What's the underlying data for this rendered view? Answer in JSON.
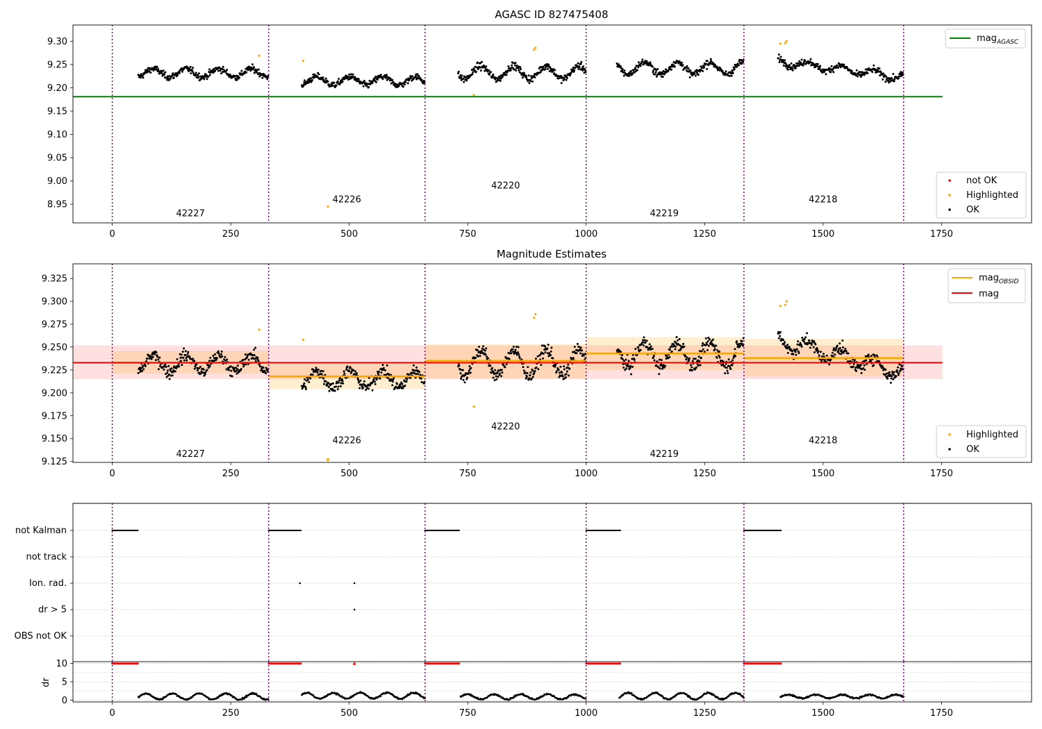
{
  "figure": {
    "x_ticks": [
      0,
      250,
      500,
      750,
      1000,
      1250,
      1500,
      1750
    ],
    "x_range": [
      -83,
      1940
    ]
  },
  "chart_data": [
    {
      "type": "scatter",
      "title": "AGASC ID 827475408",
      "xlabel": "",
      "ylabel": "",
      "xlim": [
        -83,
        1940
      ],
      "ylim": [
        8.91,
        9.335
      ],
      "y_ticks": [
        8.95,
        9.0,
        9.05,
        9.1,
        9.15,
        9.2,
        9.25,
        9.3
      ],
      "obsid_boundaries": [
        0,
        330,
        660,
        1000,
        1333,
        1670
      ],
      "obsid_labels": [
        {
          "obsid": "42227",
          "x": 165,
          "y": 8.93
        },
        {
          "obsid": "42226",
          "x": 495,
          "y": 8.96
        },
        {
          "obsid": "42220",
          "x": 830,
          "y": 8.99
        },
        {
          "obsid": "42219",
          "x": 1165,
          "y": 8.93
        },
        {
          "obsid": "42218",
          "x": 1500,
          "y": 8.96
        }
      ],
      "lines": [
        {
          "name": "mag_AGASC",
          "y": 9.181,
          "x_range": [
            -83,
            1752
          ],
          "color": "#008000"
        }
      ],
      "segments": [
        {
          "x": [
            55,
            330
          ],
          "mean": 9.232,
          "amp": 0.009,
          "noise": 0.009,
          "trend": 0.0
        },
        {
          "x": [
            400,
            660
          ],
          "mean": 9.215,
          "amp": 0.009,
          "noise": 0.009,
          "trend": 0.0
        },
        {
          "x": [
            730,
            1000
          ],
          "mean": 9.233,
          "amp": 0.014,
          "noise": 0.01,
          "trend": 0.0
        },
        {
          "x": [
            1065,
            1333
          ],
          "mean": 9.242,
          "amp": 0.013,
          "noise": 0.01,
          "trend": 0.0
        },
        {
          "x": [
            1405,
            1670
          ],
          "mean": 9.24,
          "amp": 0.008,
          "noise": 0.009,
          "trend": -0.035
        }
      ],
      "highlighted_points": [
        [
          310,
          9.269
        ],
        [
          403,
          9.258
        ],
        [
          455,
          8.945
        ],
        [
          763,
          9.185
        ],
        [
          890,
          9.282
        ],
        [
          893,
          9.286
        ],
        [
          1410,
          9.295
        ],
        [
          1420,
          9.296
        ],
        [
          1423,
          9.3
        ]
      ],
      "legends": [
        {
          "position": "upper-right",
          "entries": [
            {
              "label": "mag",
              "subscript": "AGASC",
              "kind": "line",
              "color": "#008000"
            }
          ]
        },
        {
          "position": "lower-right",
          "entries": [
            {
              "label": "not OK",
              "kind": "dot",
              "color": "#ff0000"
            },
            {
              "label": "Highlighted",
              "kind": "dot",
              "color": "#ffa500"
            },
            {
              "label": "OK",
              "kind": "dot",
              "color": "#000000"
            }
          ]
        }
      ]
    },
    {
      "type": "scatter",
      "title": "Magnitude Estimates",
      "xlabel": "",
      "ylabel": "",
      "xlim": [
        -83,
        1940
      ],
      "ylim": [
        9.124,
        9.341
      ],
      "y_ticks": [
        9.125,
        9.15,
        9.175,
        9.2,
        9.225,
        9.25,
        9.275,
        9.3,
        9.325
      ],
      "obsid_boundaries": [
        0,
        330,
        660,
        1000,
        1333,
        1670
      ],
      "obsid_labels": [
        {
          "obsid": "42227",
          "x": 165,
          "y": 9.133
        },
        {
          "obsid": "42226",
          "x": 495,
          "y": 9.148
        },
        {
          "obsid": "42220",
          "x": 830,
          "y": 9.163
        },
        {
          "obsid": "42219",
          "x": 1165,
          "y": 9.133
        },
        {
          "obsid": "42218",
          "x": 1500,
          "y": 9.148
        }
      ],
      "mag": {
        "value": 9.233,
        "band": [
          9.215,
          9.252
        ],
        "x_range": [
          -83,
          1752
        ],
        "color": "#ff0000"
      },
      "mag_obsid": [
        {
          "x": [
            0,
            330
          ],
          "value": 9.233,
          "band": [
            9.221,
            9.246
          ]
        },
        {
          "x": [
            330,
            660
          ],
          "value": 9.218,
          "band": [
            9.204,
            9.232
          ]
        },
        {
          "x": [
            660,
            1000
          ],
          "value": 9.235,
          "band": [
            9.216,
            9.253
          ]
        },
        {
          "x": [
            1000,
            1333
          ],
          "value": 9.243,
          "band": [
            9.225,
            9.261
          ]
        },
        {
          "x": [
            1333,
            1670
          ],
          "value": 9.238,
          "band": [
            9.218,
            9.259
          ]
        }
      ],
      "segments": [
        {
          "x": [
            55,
            330
          ],
          "mean": 9.232,
          "amp": 0.009,
          "noise": 0.009,
          "trend": 0.0
        },
        {
          "x": [
            400,
            660
          ],
          "mean": 9.215,
          "amp": 0.009,
          "noise": 0.009,
          "trend": 0.0
        },
        {
          "x": [
            730,
            1000
          ],
          "mean": 9.233,
          "amp": 0.014,
          "noise": 0.01,
          "trend": 0.0
        },
        {
          "x": [
            1065,
            1333
          ],
          "mean": 9.242,
          "amp": 0.013,
          "noise": 0.01,
          "trend": 0.0
        },
        {
          "x": [
            1405,
            1670
          ],
          "mean": 9.24,
          "amp": 0.008,
          "noise": 0.009,
          "trend": -0.035
        }
      ],
      "highlighted_points": [
        [
          310,
          9.269
        ],
        [
          403,
          9.258
        ],
        [
          763,
          9.185
        ],
        [
          890,
          9.282
        ],
        [
          893,
          9.286
        ],
        [
          1410,
          9.295
        ],
        [
          1420,
          9.296
        ],
        [
          1423,
          9.3
        ]
      ],
      "offscale_markers": [
        [
          455,
          9.126
        ]
      ],
      "legends": [
        {
          "position": "upper-right",
          "entries": [
            {
              "label": "mag",
              "subscript": "OBSID",
              "kind": "line",
              "color": "#ffa500"
            },
            {
              "label": "mag",
              "subscript": "",
              "kind": "line",
              "color": "#ff0000"
            }
          ]
        },
        {
          "position": "lower-right",
          "entries": [
            {
              "label": "Highlighted",
              "kind": "dot",
              "color": "#ffa500"
            },
            {
              "label": "OK",
              "kind": "dot",
              "color": "#000000"
            }
          ]
        }
      ]
    },
    {
      "type": "scatter",
      "title": "",
      "ylabel": "",
      "xlim": [
        -83,
        1940
      ],
      "flag_rows": [
        "not Kalman",
        "not track",
        "Ion. rad.",
        "dr > 5",
        "OBS not OK"
      ],
      "not_kalman_ranges": [
        [
          0,
          55
        ],
        [
          330,
          398
        ],
        [
          660,
          733
        ],
        [
          1000,
          1072
        ],
        [
          1333,
          1411
        ]
      ],
      "ion_rad_points": [
        396,
        511
      ],
      "dr_gt_5_points": [
        511
      ],
      "obsid_boundaries": [
        0,
        330,
        660,
        1000,
        1333,
        1670
      ]
    },
    {
      "type": "scatter",
      "title": "",
      "ylabel": "dr",
      "xlim": [
        -83,
        1940
      ],
      "ylim": [
        -0.5,
        10.5
      ],
      "y_ticks": [
        0,
        5,
        10
      ],
      "saturated_value": 10,
      "saturated_ranges": [
        [
          0,
          55
        ],
        [
          330,
          398
        ],
        [
          660,
          733
        ],
        [
          1000,
          1072
        ],
        [
          1333,
          1411
        ]
      ],
      "saturated_points": [
        511
      ],
      "dr_segments": [
        {
          "x": [
            55,
            330
          ],
          "mean": 1.0,
          "amp": 0.8
        },
        {
          "x": [
            400,
            660
          ],
          "mean": 1.2,
          "amp": 0.8
        },
        {
          "x": [
            735,
            1000
          ],
          "mean": 0.9,
          "amp": 0.7
        },
        {
          "x": [
            1070,
            1333
          ],
          "mean": 1.1,
          "amp": 0.9
        },
        {
          "x": [
            1410,
            1670
          ],
          "mean": 1.0,
          "amp": 0.5
        }
      ],
      "obsid_boundaries": [
        0,
        330,
        660,
        1000,
        1333,
        1670
      ]
    }
  ]
}
